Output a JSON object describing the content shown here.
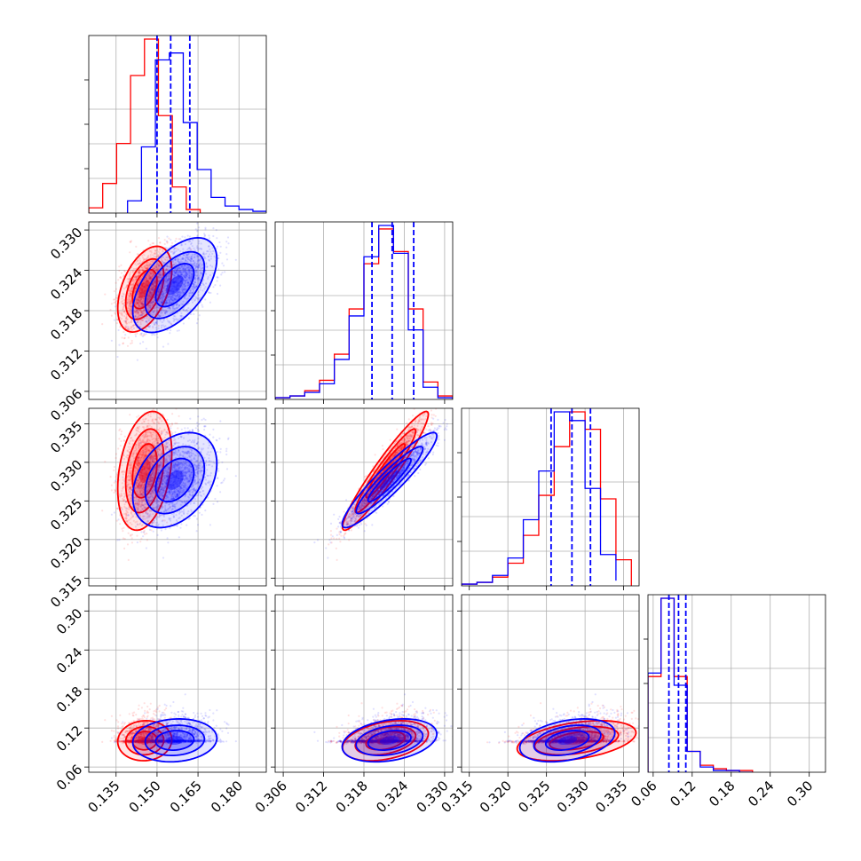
{
  "colors": {
    "series_a": "#ff0000",
    "series_b": "#0000ff",
    "grid": "#b0b0b0"
  },
  "chart_data": {
    "type": "corner",
    "grid": true,
    "legend": "none",
    "params": [
      {
        "range": [
          0.125,
          0.19
        ],
        "ticks": [
          "0.135",
          "0.150",
          "0.165",
          "0.180"
        ]
      },
      {
        "range": [
          0.3048,
          0.3312
        ],
        "ticks": [
          "0.306",
          "0.312",
          "0.318",
          "0.324",
          "0.330"
        ]
      },
      {
        "range": [
          0.314,
          0.337
        ],
        "ticks": [
          "0.315",
          "0.320",
          "0.325",
          "0.330",
          "0.335"
        ]
      },
      {
        "range": [
          0.052,
          0.325
        ],
        "ticks": [
          "0.06",
          "0.12",
          "0.18",
          "0.24",
          "0.30"
        ]
      }
    ],
    "series": [
      {
        "color": "#ff0000",
        "mean": [
          0.1455,
          0.3212,
          0.3289,
          0.1005
        ],
        "sd": [
          0.0045,
          0.0029,
          0.0035,
          0.014
        ],
        "corr": [
          [
            1,
            0.45,
            0.3,
            0.05
          ],
          [
            0.45,
            1,
            0.95,
            0.35
          ],
          [
            0.3,
            0.95,
            1,
            0.4
          ],
          [
            0.05,
            0.35,
            0.4,
            1
          ]
        ],
        "hist_edges": [
          [
            0.125,
            0.1301,
            0.1352,
            0.1403,
            0.1454,
            0.1505,
            0.1556,
            0.1607,
            0.1658
          ],
          [
            0.3048,
            0.307,
            0.3092,
            0.3114,
            0.3136,
            0.3158,
            0.318,
            0.3202,
            0.3224,
            0.3246,
            0.3268,
            0.329,
            0.3312
          ],
          [
            0.314,
            0.316,
            0.318,
            0.32,
            0.322,
            0.324,
            0.326,
            0.328,
            0.33,
            0.332,
            0.334,
            0.336
          ],
          [
            0.052,
            0.0721,
            0.0922,
            0.1123,
            0.1324,
            0.1525,
            0.1726,
            0.1927,
            0.2128
          ]
        ],
        "hist": [
          [
            0.03,
            0.17,
            0.4,
            0.79,
            1.0,
            0.56,
            0.15,
            0.02
          ],
          [
            0.01,
            0.02,
            0.05,
            0.11,
            0.26,
            0.52,
            0.78,
            0.98,
            0.85,
            0.52,
            0.1,
            0.02
          ],
          [
            0.01,
            0.02,
            0.05,
            0.13,
            0.29,
            0.52,
            0.8,
            1.0,
            0.9,
            0.5,
            0.15
          ],
          [
            0.55,
            1.0,
            0.55,
            0.12,
            0.04,
            0.02,
            0.01,
            0.01
          ]
        ]
      },
      {
        "color": "#0000ff",
        "mean": [
          0.1565,
          0.3218,
          0.3277,
          0.101
        ],
        "sd": [
          0.007,
          0.0032,
          0.0028,
          0.015
        ],
        "corr": [
          [
            1,
            0.55,
            0.35,
            0.1
          ],
          [
            0.55,
            1,
            0.93,
            0.3
          ],
          [
            0.35,
            0.93,
            1,
            0.35
          ],
          [
            0.1,
            0.3,
            0.35,
            1
          ]
        ],
        "quantiles": [
          [
            0.15,
            0.155,
            0.162
          ],
          [
            0.3192,
            0.3222,
            0.3254
          ],
          [
            0.3256,
            0.3283,
            0.3307
          ],
          [
            0.0842,
            0.099,
            0.1102
          ]
        ],
        "hist_edges": [
          [
            0.1392,
            0.1443,
            0.1494,
            0.1545,
            0.1596,
            0.1647,
            0.1698,
            0.1749,
            0.18,
            0.1851,
            0.1902
          ],
          [
            0.3048,
            0.307,
            0.3092,
            0.3114,
            0.3136,
            0.3158,
            0.318,
            0.3202,
            0.3224,
            0.3246,
            0.3268,
            0.329,
            0.3312
          ],
          [
            0.314,
            0.316,
            0.318,
            0.32,
            0.322,
            0.324,
            0.326,
            0.328,
            0.33,
            0.332,
            0.334
          ],
          [
            0.052,
            0.0721,
            0.0922,
            0.1123,
            0.1324,
            0.1525,
            0.1726,
            0.1927,
            0.2128
          ]
        ],
        "hist": [
          [
            0.07,
            0.38,
            0.88,
            0.92,
            0.52,
            0.25,
            0.09,
            0.04,
            0.02,
            0.01
          ],
          [
            0.01,
            0.02,
            0.04,
            0.09,
            0.23,
            0.48,
            0.82,
            1.0,
            0.84,
            0.4,
            0.07,
            0.01
          ],
          [
            0.01,
            0.02,
            0.06,
            0.16,
            0.38,
            0.66,
            1.0,
            0.95,
            0.56,
            0.18,
            0.03
          ],
          [
            0.57,
            1.0,
            0.5,
            0.12,
            0.03,
            0.01,
            0.01,
            0.0
          ]
        ]
      }
    ]
  }
}
